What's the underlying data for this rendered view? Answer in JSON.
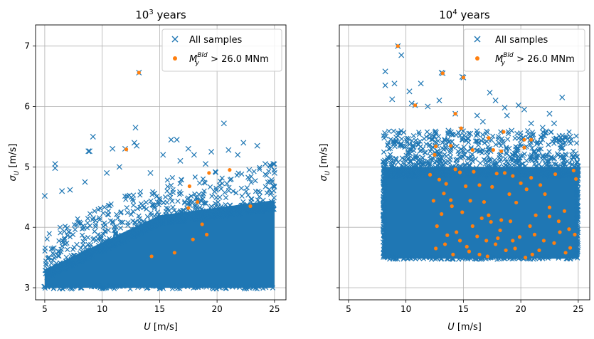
{
  "chart_data": [
    {
      "type": "scatter",
      "title_base": "10",
      "title_exp": "3",
      "title_suffix": " years",
      "xlabel_var": "U",
      "xlabel_unit": " [m/s]",
      "ylabel_var": "σ",
      "ylabel_sub": "U",
      "ylabel_unit": " [m/s]",
      "xlim": [
        4.2,
        26.0
      ],
      "ylim": [
        2.8,
        7.35
      ],
      "xticks": [
        5,
        10,
        15,
        20,
        25
      ],
      "yticks": [
        3,
        4,
        5,
        6,
        7
      ],
      "grid": true,
      "legend_position": "upper right",
      "legend": {
        "samples_label": "All samples",
        "exceed_var": "M",
        "exceed_sub": "y",
        "exceed_sup": "Bld",
        "exceed_rest": " > 26.0 MNm"
      },
      "series": [
        {
          "name": "All samples",
          "marker": "x",
          "color": "#1f77b4",
          "dense_region": "U 5–25 m/s, σU 3.0–4.6 m/s (lower boundary rising from ~3.0)",
          "points": [
            [
              5.0,
              4.52
            ],
            [
              5.9,
              5.05
            ],
            [
              5.9,
              4.98
            ],
            [
              7.2,
              4.62
            ],
            [
              8.8,
              5.26
            ],
            [
              8.9,
              5.26
            ],
            [
              9.2,
              5.5
            ],
            [
              10.9,
              5.3
            ],
            [
              12.9,
              5.65
            ],
            [
              13.2,
              6.56
            ],
            [
              12.0,
              5.3
            ],
            [
              16.0,
              5.45
            ],
            [
              16.5,
              5.45
            ],
            [
              17.5,
              5.3
            ],
            [
              20.6,
              5.72
            ],
            [
              21.0,
              5.28
            ],
            [
              22.3,
              5.4
            ],
            [
              23.5,
              5.35
            ],
            [
              24.9,
              5.05
            ],
            [
              12.8,
              5.4
            ],
            [
              13.0,
              5.35
            ],
            [
              15.3,
              5.2
            ],
            [
              18.0,
              5.2
            ],
            [
              19.5,
              5.25
            ],
            [
              21.8,
              5.2
            ],
            [
              24.2,
              5.05
            ],
            [
              6.5,
              4.6
            ],
            [
              8.5,
              4.75
            ],
            [
              10.4,
              4.9
            ],
            [
              11.5,
              5.0
            ],
            [
              14.2,
              4.9
            ],
            [
              16.8,
              5.1
            ],
            [
              19.0,
              5.05
            ],
            [
              22.8,
              4.95
            ],
            [
              25.0,
              4.9
            ]
          ]
        },
        {
          "name": "M_y^Bld > 26.0 MNm",
          "marker": "o",
          "color": "#ff7f0e",
          "points": [
            [
              13.2,
              6.56
            ],
            [
              12.1,
              5.29
            ],
            [
              17.6,
              4.68
            ],
            [
              17.5,
              4.32
            ],
            [
              18.3,
              4.42
            ],
            [
              17.9,
              3.8
            ],
            [
              18.7,
              4.05
            ],
            [
              19.1,
              3.88
            ],
            [
              16.3,
              3.58
            ],
            [
              14.3,
              3.52
            ],
            [
              19.3,
              4.9
            ],
            [
              21.1,
              4.95
            ],
            [
              22.9,
              4.35
            ]
          ]
        }
      ]
    },
    {
      "type": "scatter",
      "title_base": "10",
      "title_exp": "4",
      "title_suffix": " years",
      "xlabel_var": "U",
      "xlabel_unit": " [m/s]",
      "ylabel_var": "σ",
      "ylabel_sub": "U",
      "ylabel_unit": " [m/s]",
      "xlim": [
        4.2,
        26.0
      ],
      "ylim": [
        2.8,
        7.35
      ],
      "xticks": [
        5,
        10,
        15,
        20,
        25
      ],
      "yticks": [
        3,
        4,
        5,
        6,
        7
      ],
      "grid": true,
      "legend_position": "upper right",
      "legend": {
        "samples_label": "All samples",
        "exceed_var": "M",
        "exceed_sub": "y",
        "exceed_sup": "Bld",
        "exceed_rest": " > 26.0 MNm"
      },
      "series": [
        {
          "name": "All samples",
          "marker": "x",
          "color": "#1f77b4",
          "dense_region": "U 8–25 m/s, σU 3.5–5.3 m/s",
          "points": [
            [
              9.3,
              7.0
            ],
            [
              9.6,
              6.85
            ],
            [
              8.2,
              6.58
            ],
            [
              8.2,
              6.35
            ],
            [
              9.0,
              6.38
            ],
            [
              10.3,
              6.25
            ],
            [
              11.3,
              6.38
            ],
            [
              10.5,
              6.05
            ],
            [
              10.8,
              6.02
            ],
            [
              13.1,
              6.56
            ],
            [
              13.2,
              6.55
            ],
            [
              14.9,
              6.49
            ],
            [
              15.0,
              6.48
            ],
            [
              17.3,
              6.23
            ],
            [
              17.8,
              6.1
            ],
            [
              18.6,
              5.98
            ],
            [
              19.8,
              6.02
            ],
            [
              20.3,
              5.95
            ],
            [
              22.5,
              5.88
            ],
            [
              23.6,
              6.15
            ],
            [
              8.8,
              6.12
            ],
            [
              11.9,
              6.0
            ],
            [
              12.9,
              6.1
            ],
            [
              14.3,
              5.88
            ],
            [
              14.8,
              5.62
            ],
            [
              16.2,
              5.85
            ],
            [
              16.7,
              5.75
            ],
            [
              18.8,
              5.85
            ],
            [
              20.9,
              5.72
            ],
            [
              21.9,
              5.65
            ],
            [
              22.9,
              5.72
            ],
            [
              24.3,
              5.5
            ],
            [
              24.4,
              5.45
            ],
            [
              12.4,
              5.5
            ],
            [
              13.7,
              5.6
            ],
            [
              15.6,
              5.55
            ],
            [
              17.2,
              5.45
            ],
            [
              19.2,
              5.6
            ],
            [
              20.6,
              5.48
            ],
            [
              23.3,
              5.45
            ]
          ]
        },
        {
          "name": "M_y^Bld > 26.0 MNm",
          "marker": "o",
          "color": "#ff7f0e",
          "points": [
            [
              9.3,
              7.0
            ],
            [
              10.8,
              6.02
            ],
            [
              13.2,
              6.55
            ],
            [
              15.0,
              6.48
            ],
            [
              14.3,
              5.88
            ],
            [
              14.8,
              5.64
            ],
            [
              17.2,
              5.48
            ],
            [
              18.5,
              5.58
            ],
            [
              20.3,
              5.45
            ],
            [
              20.9,
              5.45
            ],
            [
              20.3,
              5.32
            ],
            [
              13.9,
              5.35
            ],
            [
              12.6,
              5.34
            ],
            [
              12.5,
              5.2
            ],
            [
              15.8,
              5.28
            ],
            [
              17.6,
              5.28
            ],
            [
              18.3,
              5.26
            ],
            [
              12.1,
              4.87
            ],
            [
              12.9,
              4.79
            ],
            [
              13.3,
              4.56
            ],
            [
              13.5,
              4.72
            ],
            [
              13.9,
              4.45
            ],
            [
              14.3,
              4.96
            ],
            [
              14.7,
              4.91
            ],
            [
              15.2,
              4.68
            ],
            [
              15.6,
              4.44
            ],
            [
              15.9,
              4.92
            ],
            [
              16.4,
              4.7
            ],
            [
              16.8,
              4.42
            ],
            [
              17.2,
              4.2
            ],
            [
              17.5,
              4.67
            ],
            [
              17.9,
              4.89
            ],
            [
              18.3,
              4.12
            ],
            [
              18.6,
              4.9
            ],
            [
              19.0,
              4.55
            ],
            [
              19.3,
              4.85
            ],
            [
              19.6,
              4.41
            ],
            [
              20.0,
              4.73
            ],
            [
              20.5,
              4.63
            ],
            [
              20.9,
              4.82
            ],
            [
              21.3,
              4.2
            ],
            [
              21.7,
              4.7
            ],
            [
              22.1,
              4.55
            ],
            [
              22.5,
              4.33
            ],
            [
              23.0,
              4.88
            ],
            [
              23.3,
              4.1
            ],
            [
              23.8,
              4.27
            ],
            [
              24.2,
              3.97
            ],
            [
              24.6,
              4.94
            ],
            [
              24.8,
              4.8
            ],
            [
              12.4,
              4.44
            ],
            [
              12.7,
              4.02
            ],
            [
              13.1,
              4.22
            ],
            [
              13.6,
              3.87
            ],
            [
              14.0,
              4.35
            ],
            [
              14.4,
              3.92
            ],
            [
              14.9,
              4.25
            ],
            [
              15.3,
              3.68
            ],
            [
              15.8,
              4.02
            ],
            [
              16.2,
              3.85
            ],
            [
              16.6,
              4.15
            ],
            [
              17.0,
              3.78
            ],
            [
              17.4,
              4.09
            ],
            [
              17.8,
              3.72
            ],
            [
              18.2,
              3.95
            ],
            [
              18.7,
              3.62
            ],
            [
              19.1,
              4.1
            ],
            [
              19.5,
              3.65
            ],
            [
              19.9,
              3.84
            ],
            [
              20.4,
              3.5
            ],
            [
              20.8,
              4.02
            ],
            [
              21.2,
              3.88
            ],
            [
              21.6,
              3.62
            ],
            [
              22.0,
              3.78
            ],
            [
              22.5,
              4.18
            ],
            [
              22.9,
              3.74
            ],
            [
              23.4,
              3.92
            ],
            [
              23.9,
              3.58
            ],
            [
              24.3,
              3.66
            ],
            [
              24.7,
              3.88
            ],
            [
              12.6,
              3.65
            ],
            [
              13.4,
              3.72
            ],
            [
              14.1,
              3.55
            ],
            [
              14.7,
              3.78
            ],
            [
              15.5,
              3.6
            ],
            [
              16.4,
              3.55
            ],
            [
              17.1,
              3.52
            ],
            [
              18.0,
              3.82
            ],
            [
              19.3,
              3.78
            ],
            [
              21.0,
              3.55
            ]
          ]
        }
      ]
    }
  ]
}
